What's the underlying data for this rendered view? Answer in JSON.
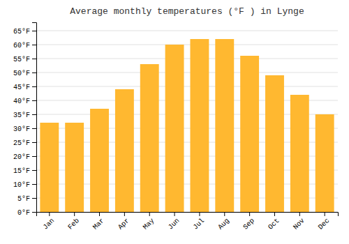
{
  "chart_data": {
    "type": "bar",
    "title": "Average monthly temperatures (°F ) in Lynge",
    "categories": [
      "Jan",
      "Feb",
      "Mar",
      "Apr",
      "May",
      "Jun",
      "Jul",
      "Aug",
      "Sep",
      "Oct",
      "Nov",
      "Dec"
    ],
    "values": [
      32,
      32,
      37,
      44,
      53,
      60,
      62,
      62,
      56,
      49,
      42,
      35
    ],
    "color": "#FFB830",
    "ylim": [
      0,
      68
    ],
    "yticks": [
      {
        "value": 0,
        "label": "0°F"
      },
      {
        "value": 5,
        "label": "5°F"
      },
      {
        "value": 10,
        "label": "10°F"
      },
      {
        "value": 15,
        "label": "15°F"
      },
      {
        "value": 20,
        "label": "20°F"
      },
      {
        "value": 25,
        "label": "25°F"
      },
      {
        "value": 30,
        "label": "30°F"
      },
      {
        "value": 35,
        "label": "35°F"
      },
      {
        "value": 40,
        "label": "40°F"
      },
      {
        "value": 45,
        "label": "45°F"
      },
      {
        "value": 50,
        "label": "50°F"
      },
      {
        "value": 55,
        "label": "55°F"
      },
      {
        "value": 60,
        "label": "60°F"
      },
      {
        "value": 65,
        "label": "65°F"
      }
    ],
    "grid": true
  }
}
